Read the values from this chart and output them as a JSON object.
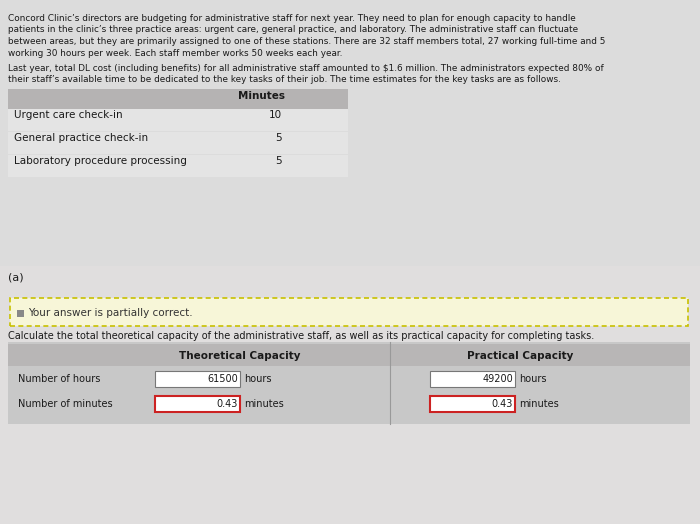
{
  "bg_color": "#d0cece",
  "top_bg": "#dcdcdc",
  "bottom_bg": "#e0dede",
  "paragraph1_lines": [
    "Concord Clinic’s directors are budgeting for administrative staff for next year. They need to plan for enough capacity to handle",
    "patients in the clinic’s three practice areas: urgent care, general practice, and laboratory. The administrative staff can fluctuate",
    "between areas, but they are primarily assigned to one of these stations. There are 32 staff members total, 27 working full-time and 5",
    "working 30 hours per week. Each staff member works 50 weeks each year."
  ],
  "paragraph2_lines": [
    "Last year, total DL cost (including benefits) for all administrative staff amounted to $1.6 million. The administrators expected 80% of",
    "their staff’s available time to be dedicated to the key tasks of their job. The time estimates for the key tasks are as follows."
  ],
  "table_header": "Minutes",
  "table_rows": [
    {
      "label": "Urgent care check-in",
      "value": "10"
    },
    {
      "label": "General practice check-in",
      "value": "5"
    },
    {
      "label": "Laboratory procedure processing",
      "value": "5"
    }
  ],
  "section_a_label": "(a)",
  "partial_correct_text": "   Your answer is partially correct.",
  "question_text": "Calculate the total theoretical capacity of the administrative staff, as well as its practical capacity for completing tasks.",
  "theoretical_label": "Theoretical Capacity",
  "practical_label": "Practical Capacity",
  "row1_label": "Number of hours",
  "row2_label": "Number of minutes",
  "theoretical_hours": "61500",
  "theoretical_minutes": "0.43",
  "practical_hours": "49200",
  "practical_minutes": "0.43",
  "hours_text": "hours",
  "minutes_text": "minutes"
}
